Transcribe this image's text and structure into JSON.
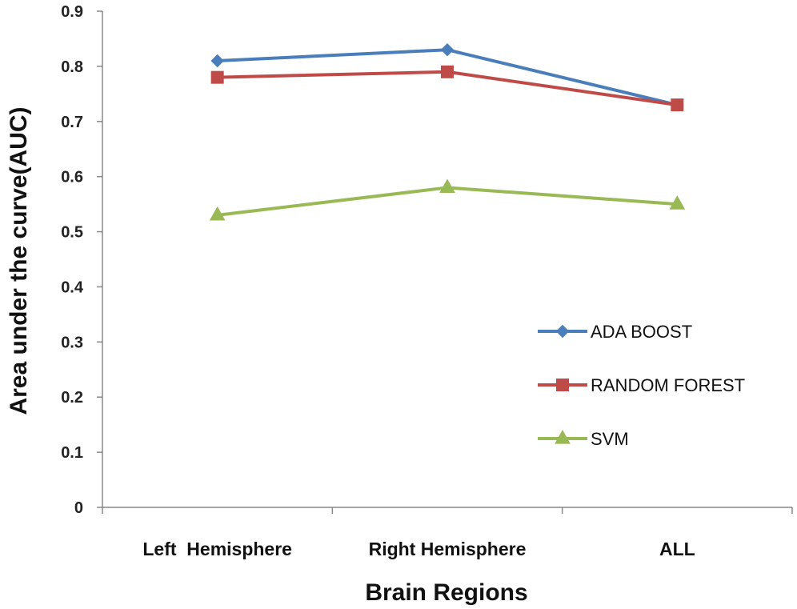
{
  "chart_data": {
    "type": "line",
    "title": "",
    "xlabel": "Brain Regions",
    "ylabel": "Area under the curve(AUC)",
    "categories": [
      "Left  Hemisphere",
      "Right Hemisphere",
      "ALL"
    ],
    "ylim": [
      0,
      0.9
    ],
    "yticks": [
      "0",
      "0.1",
      "0.2",
      "0.3",
      "0.4",
      "0.5",
      "0.6",
      "0.7",
      "0.8",
      "0.9"
    ],
    "grid": false,
    "legend_position": "center-right",
    "series": [
      {
        "name": "ADA BOOST",
        "values": [
          0.81,
          0.83,
          0.73
        ],
        "color": "#4a7ebb",
        "marker": "diamond"
      },
      {
        "name": "RANDOM FOREST",
        "values": [
          0.78,
          0.79,
          0.73
        ],
        "color": "#be4b48",
        "marker": "square"
      },
      {
        "name": "SVM",
        "values": [
          0.53,
          0.58,
          0.55
        ],
        "color": "#98b954",
        "marker": "triangle"
      }
    ]
  }
}
